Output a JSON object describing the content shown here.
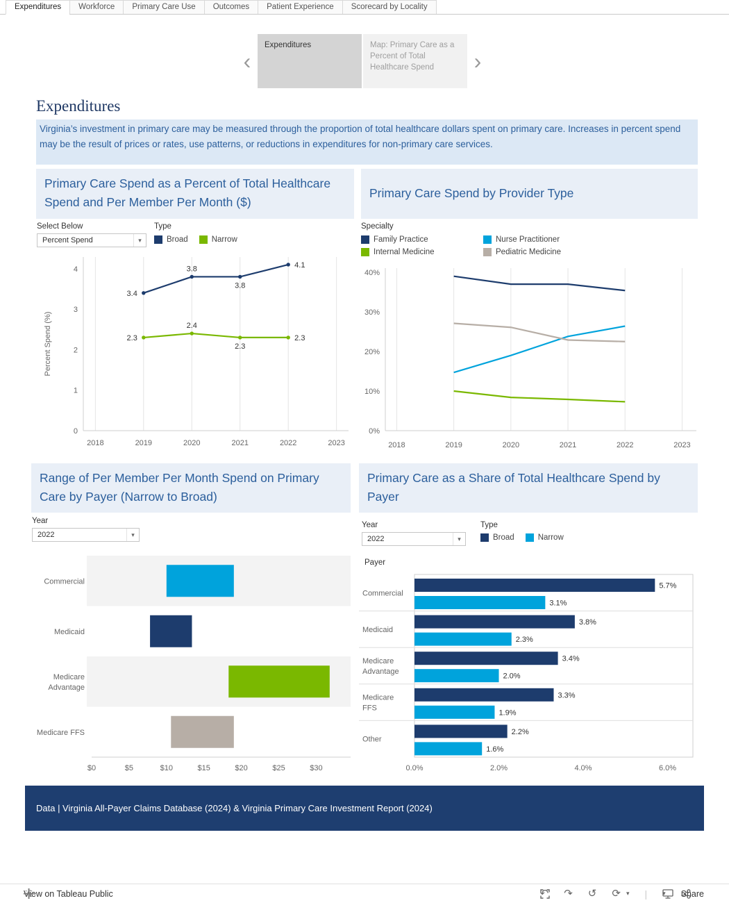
{
  "colors": {
    "navy": "#1d3c6d",
    "cyan": "#00a3dc",
    "green": "#7ab800",
    "taupe": "#b7aea6",
    "title_blue": "#2c5f9c",
    "page_title": "#1f3864",
    "header_bg": "#e9eff7",
    "description_bg": "#dce8f5",
    "footer_bg": "#1e3e70"
  },
  "tabs": {
    "items": [
      "Expenditures",
      "Workforce",
      "Primary Care Use",
      "Outcomes",
      "Patient Experience",
      "Scorecard by Locality"
    ],
    "active_index": 0
  },
  "story_nav": {
    "cards": [
      {
        "label": "Expenditures",
        "active": true
      },
      {
        "label": "Map: Primary Care as a Percent of Total Healthcare Spend",
        "active": false
      }
    ]
  },
  "page": {
    "title": "Expenditures",
    "description": "Virginia’s investment in primary care may be measured through the proportion of total healthcare dollars spent on primary care. Increases in percent spend may be the result of prices or rates, use patterns, or reductions in expenditures for non-primary care services."
  },
  "panels": {
    "spend_percent": {
      "title": "Primary Care Spend as a Percent of Total Healthcare Spend and Per Member Per Month ($)",
      "select_label": "Select Below",
      "select_value": "Percent Spend",
      "legend_title": "Type"
    },
    "provider_type": {
      "title": "Primary Care Spend by Provider Type",
      "legend_title": "Specialty"
    },
    "pmpm_range": {
      "title": "Range of Per Member Per Month Spend on Primary Care by Payer (Narrow to Broad)",
      "year_label": "Year",
      "year_value": "2022"
    },
    "share_by_payer": {
      "title": "Primary Care as a Share of Total Healthcare Spend by Payer",
      "year_label": "Year",
      "year_value": "2022",
      "legend_title": "Type",
      "axis_row_label": "Payer"
    }
  },
  "chart_data": [
    {
      "id": "spend_percent_trend",
      "type": "line",
      "title": "Primary Care Spend as a Percent of Total Healthcare Spend and Per Member Per Month ($)",
      "ylabel": "Percent Spend (%)",
      "x_ticks": [
        "2018",
        "2019",
        "2020",
        "2021",
        "2022",
        "2023"
      ],
      "x_tick_values": [
        2018,
        2019,
        2020,
        2021,
        2022,
        2023
      ],
      "xlim": [
        2017.75,
        2023.25
      ],
      "y_ticks": [
        "0",
        "1",
        "2",
        "3",
        "4"
      ],
      "y_tick_values": [
        0,
        1,
        2,
        3,
        4
      ],
      "ylim": [
        0,
        4.3
      ],
      "x": [
        2019,
        2020,
        2021,
        2022
      ],
      "markers": true,
      "series": [
        {
          "name": "Broad",
          "color": "navy",
          "values": [
            3.4,
            3.8,
            3.8,
            4.1
          ],
          "label_positions": [
            "left",
            "above",
            "below",
            "right"
          ]
        },
        {
          "name": "Narrow",
          "color": "green",
          "values": [
            2.3,
            2.4,
            2.3,
            2.3
          ],
          "label_positions": [
            "left",
            "above",
            "below",
            "right"
          ]
        }
      ]
    },
    {
      "id": "provider_type_trend",
      "type": "line",
      "title": "Primary Care Spend by Provider Type",
      "x_ticks": [
        "2018",
        "2019",
        "2020",
        "2021",
        "2022",
        "2023"
      ],
      "x_tick_values": [
        2018,
        2019,
        2020,
        2021,
        2022,
        2023
      ],
      "xlim": [
        2017.8,
        2023.25
      ],
      "y_ticks": [
        "0%",
        "10%",
        "20%",
        "30%",
        "40%"
      ],
      "y_tick_values": [
        0,
        10,
        20,
        30,
        40
      ],
      "ylim": [
        0,
        42
      ],
      "x": [
        2019,
        2020,
        2021,
        2022
      ],
      "markers": false,
      "series": [
        {
          "name": "Family Practice",
          "color": "navy",
          "values": [
            39,
            37,
            37,
            35.4
          ]
        },
        {
          "name": "Nurse Practitioner",
          "color": "cyan",
          "values": [
            14.7,
            19,
            23.8,
            26.4
          ]
        },
        {
          "name": "Internal Medicine",
          "color": "green",
          "values": [
            10,
            8.4,
            7.9,
            7.3
          ]
        },
        {
          "name": "Pediatric Medicine",
          "color": "taupe",
          "values": [
            27.1,
            26.1,
            22.9,
            22.5
          ]
        }
      ]
    },
    {
      "id": "pmpm_range_by_payer",
      "type": "range_bar",
      "title": "Range of Per Member Per Month Spend on Primary Care by Payer (Narrow to Broad)",
      "year": "2022",
      "categories": [
        "Commercial",
        "Medicaid",
        "Medicare Advantage",
        "Medicare FFS"
      ],
      "category_lines": [
        [
          "Commercial"
        ],
        [
          "Medicaid"
        ],
        [
          "Medicare",
          "Advantage"
        ],
        [
          "Medicare FFS"
        ]
      ],
      "ranges_dollars": [
        [
          10,
          19
        ],
        [
          7.8,
          13.4
        ],
        [
          18.3,
          31.8
        ],
        [
          10.6,
          19
        ]
      ],
      "bar_colors": [
        "cyan",
        "navy",
        "green",
        "taupe"
      ],
      "x_ticks": [
        "$0",
        "$5",
        "$10",
        "$15",
        "$20",
        "$25",
        "$30"
      ],
      "x_tick_values": [
        0,
        5,
        10,
        15,
        20,
        25,
        30
      ],
      "xlim": [
        0,
        34.6
      ]
    },
    {
      "id": "share_of_spend_by_payer",
      "type": "grouped_bar",
      "title": "Primary Care as a Share of Total Healthcare Spend by Payer",
      "year": "2022",
      "categories": [
        "Commercial",
        "Medicaid",
        "Medicare Advantage",
        "Medicare FFS",
        "Other"
      ],
      "category_lines": [
        [
          "Commercial"
        ],
        [
          "Medicaid"
        ],
        [
          "Medicare",
          "Advantage"
        ],
        [
          "Medicare",
          "FFS"
        ],
        [
          "Other"
        ]
      ],
      "series": [
        {
          "name": "Broad",
          "color": "navy",
          "values": [
            5.7,
            3.8,
            3.4,
            3.3,
            2.2
          ],
          "labels": [
            "5.7%",
            "3.8%",
            "3.4%",
            "3.3%",
            "2.2%"
          ]
        },
        {
          "name": "Narrow",
          "color": "cyan",
          "values": [
            3.1,
            2.3,
            2.0,
            1.9,
            1.6
          ],
          "labels": [
            "3.1%",
            "2.3%",
            "2.0%",
            "1.9%",
            "1.6%"
          ]
        }
      ],
      "x_ticks": [
        "0.0%",
        "2.0%",
        "4.0%",
        "6.0%"
      ],
      "x_tick_values": [
        0,
        2,
        4,
        6
      ],
      "xlim": [
        0,
        6.6
      ]
    }
  ],
  "footer": {
    "text": "Data | Virginia All-Payer Claims Database (2024) & Virginia Primary Care Investment Report (2024)"
  },
  "toolbar": {
    "view_label": "View on Tableau Public",
    "share_label": "Share"
  }
}
